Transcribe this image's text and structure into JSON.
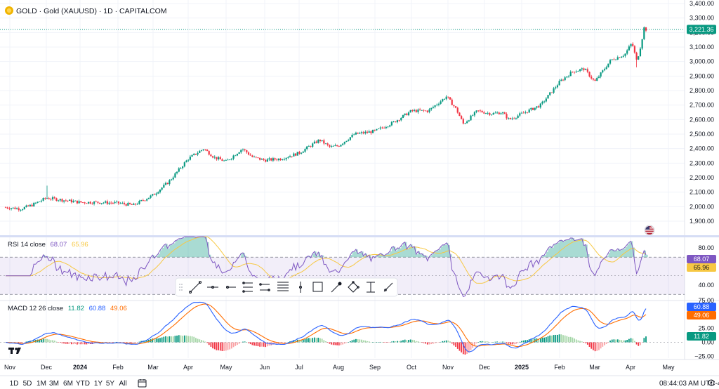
{
  "header": {
    "symbol_title": "GOLD · Gold (XAUUSD) · 1D · CAPITALCOM",
    "logo_icon": "gold-coin-icon"
  },
  "price_pane": {
    "y_ticks": [
      "3,400.00",
      "3,300.00",
      "3,200.00",
      "3,100.00",
      "3,000.00",
      "2,900.00",
      "2,800.00",
      "2,700.00",
      "2,600.00",
      "2,500.00",
      "2,400.00",
      "2,300.00",
      "2,200.00",
      "2,100.00",
      "2,000.00",
      "1,900.00"
    ],
    "y_values": [
      3400,
      3300,
      3200,
      3100,
      3000,
      2900,
      2800,
      2700,
      2600,
      2500,
      2400,
      2300,
      2200,
      2100,
      2000,
      1900
    ],
    "last_price_label": "3,221.36",
    "last_price": 3221.36,
    "up_color": "#089981",
    "down_color": "#f23645"
  },
  "rsi_pane": {
    "title_prefix": "RSI 14 close",
    "rsi_value": "68.07",
    "rsi_ma_value": "65.96",
    "rsi_color": "#7e57c2",
    "rsi_ma_color": "#f7c843",
    "y_ticks": [
      "80.00",
      "40.00"
    ],
    "y_values": [
      80,
      40
    ]
  },
  "macd_pane": {
    "title_prefix": "MACD 12 26 close",
    "hist_value": "11.82",
    "macd_value": "60.88",
    "signal_value": "49.06",
    "macd_color": "#2962ff",
    "signal_color": "#ff6d00",
    "y_ticks": [
      "75.00",
      "25.00",
      "0.00",
      "−25.00"
    ],
    "y_values": [
      75,
      25,
      0,
      -25
    ]
  },
  "time_axis": {
    "labels": [
      "Nov",
      "Dec",
      "2024",
      "Feb",
      "Mar",
      "Apr",
      "May",
      "Jun",
      "Jul",
      "Aug",
      "Sep",
      "Oct",
      "Nov",
      "Dec",
      "2025",
      "Feb",
      "Mar",
      "Apr",
      "May"
    ]
  },
  "drawing_toolbar": {
    "tools": [
      "trend-line-icon",
      "horizontal-line-icon",
      "horizontal-ray-icon",
      "parallel-channel-icon",
      "regression-trend-icon",
      "fib-retracement-icon",
      "vertical-line-icon",
      "rectangle-icon",
      "brush-icon",
      "path-icon",
      "date-range-icon",
      "ray-icon"
    ]
  },
  "bottom_bar": {
    "timeframes": [
      "1D",
      "5D",
      "1M",
      "3M",
      "6M",
      "YTD",
      "1Y",
      "5Y",
      "All"
    ],
    "clock": "08:44:03 AM UTC-4"
  },
  "chart_data": {
    "type": "candlestick",
    "x_range": [
      "2023-11-01",
      "2025-05-15"
    ],
    "ylim": [
      1850,
      3420
    ],
    "monthly_closes": [
      {
        "month": "2023-11",
        "close": 2036
      },
      {
        "month": "2023-12",
        "close": 2062
      },
      {
        "month": "2024-01",
        "close": 2040
      },
      {
        "month": "2024-02",
        "close": 2044
      },
      {
        "month": "2024-03",
        "close": 2230
      },
      {
        "month": "2024-04",
        "close": 2286
      },
      {
        "month": "2024-05",
        "close": 2327
      },
      {
        "month": "2024-06",
        "close": 2326
      },
      {
        "month": "2024-07",
        "close": 2447
      },
      {
        "month": "2024-08",
        "close": 2503
      },
      {
        "month": "2024-09",
        "close": 2634
      },
      {
        "month": "2024-10",
        "close": 2744
      },
      {
        "month": "2024-11",
        "close": 2651
      },
      {
        "month": "2024-12",
        "close": 2624
      },
      {
        "month": "2025-01",
        "close": 2798
      },
      {
        "month": "2025-02",
        "close": 2858
      },
      {
        "month": "2025-03",
        "close": 3124
      },
      {
        "month": "2025-04",
        "close": 3221
      }
    ]
  }
}
